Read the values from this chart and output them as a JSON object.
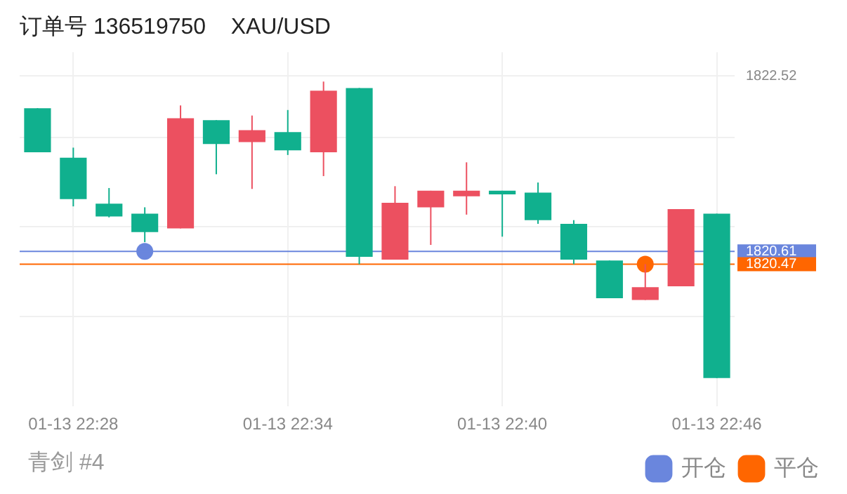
{
  "chart_data": {
    "type": "candlestick",
    "title": "订单号 136519750    XAU/USD",
    "categories": [
      null,
      "01-13 22:28",
      null,
      null,
      null,
      null,
      null,
      "01-13 22:34",
      null,
      null,
      null,
      null,
      null,
      "01-13 22:40",
      null,
      null,
      null,
      null,
      null,
      "01-13 22:46"
    ],
    "ohlc": [
      [
        1822.17,
        1822.17,
        1821.69,
        1821.69
      ],
      [
        1821.63,
        1821.74,
        1821.1,
        1821.18
      ],
      [
        1821.13,
        1821.3,
        1820.98,
        1820.99
      ],
      [
        1821.02,
        1821.09,
        1820.71,
        1820.82
      ],
      [
        1820.86,
        1822.2,
        1820.86,
        1822.06
      ],
      [
        1822.04,
        1822.04,
        1821.45,
        1821.78
      ],
      [
        1821.8,
        1822.09,
        1821.29,
        1821.93
      ],
      [
        1821.91,
        1822.15,
        1821.66,
        1821.71
      ],
      [
        1821.69,
        1822.46,
        1821.43,
        1822.36
      ],
      [
        1822.39,
        1822.39,
        1820.47,
        1820.55
      ],
      [
        1820.52,
        1821.32,
        1820.52,
        1821.14
      ],
      [
        1821.09,
        1821.27,
        1820.68,
        1821.27
      ],
      [
        1821.21,
        1821.58,
        1821.01,
        1821.27
      ],
      [
        1821.27,
        1821.27,
        1820.77,
        1821.23
      ],
      [
        1821.25,
        1821.36,
        1820.91,
        1820.95
      ],
      [
        1820.91,
        1820.95,
        1820.47,
        1820.52
      ],
      [
        1820.51,
        1820.51,
        1820.1,
        1820.1
      ],
      [
        1820.08,
        1820.47,
        1820.08,
        1820.22
      ],
      [
        1820.23,
        1821.07,
        1820.23,
        1821.07
      ],
      [
        1821.02,
        1821.02,
        1819.23,
        1819.23
      ]
    ],
    "colors": [
      "#10b08e",
      "#10b08e",
      "#10b08e",
      "#10b08e",
      "#ec5060",
      "#10b08e",
      "#ec5060",
      "#10b08e",
      "#ec5060",
      "#10b08e",
      "#ec5060",
      "#ec5060",
      "#ec5060",
      "#10b08e",
      "#10b08e",
      "#10b08e",
      "#10b08e",
      "#ec5060",
      "#ec5060",
      "#10b08e"
    ],
    "series": [
      {
        "name": "开仓",
        "type": "scatter",
        "color": "#6a86dd",
        "values": [
          null,
          null,
          null,
          1820.61,
          null,
          null,
          null,
          null,
          null,
          null,
          null,
          null,
          null,
          null,
          null,
          null,
          null,
          null,
          null,
          null
        ]
      },
      {
        "name": "平仓",
        "type": "scatter",
        "color": "#ff6600",
        "values": [
          null,
          null,
          null,
          null,
          null,
          null,
          null,
          null,
          null,
          null,
          null,
          null,
          null,
          null,
          null,
          null,
          null,
          1820.47,
          null,
          null
        ]
      }
    ],
    "ylim": [
      1818.92,
      1822.78
    ],
    "yticks": [
      {
        "value": 1819.9,
        "label": null
      },
      1820.47,
      1820.61,
      {
        "value": 1820.88,
        "label": null
      },
      {
        "value": 1821.85,
        "label": null
      },
      1822.52
    ],
    "ref_lines": [
      {
        "axis": "y",
        "value": 1820.61,
        "color": "#6a86dd"
      },
      {
        "axis": "y",
        "value": 1820.47,
        "color": "#ff6600"
      }
    ],
    "annotations": [
      "青剑 #4"
    ],
    "grid": true,
    "legend": "bottom right",
    "marker": "circle"
  }
}
